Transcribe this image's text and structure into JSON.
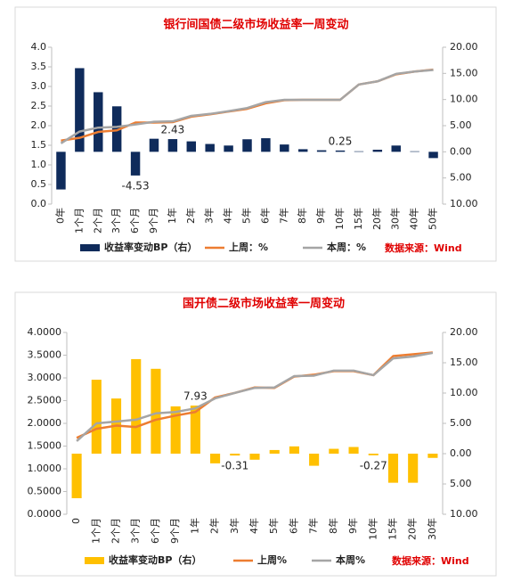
{
  "chart_data": [
    {
      "type": "combo",
      "title": "银行间国债二级市场收益率一周变动",
      "categories": [
        "0年",
        "1个月",
        "2个月",
        "3个月",
        "6个月",
        "9个月",
        "1年",
        "2年",
        "3年",
        "4年",
        "5年",
        "6年",
        "7年",
        "8年",
        "9年",
        "10年",
        "15年",
        "20年",
        "30年",
        "40年",
        "50年"
      ],
      "series": [
        {
          "name": "收益率变动BP（右）",
          "type": "bar",
          "axis": "y2",
          "color": "#0f2b5b",
          "values": [
            -7.2,
            16.0,
            11.4,
            8.7,
            -4.53,
            2.5,
            2.43,
            2.0,
            1.5,
            1.2,
            2.4,
            2.6,
            1.4,
            0.5,
            0.3,
            0.25,
            0.1,
            0.4,
            1.2,
            0.1,
            -1.2
          ],
          "value_labels": [
            null,
            null,
            null,
            null,
            "-4.53",
            null,
            "2.43",
            null,
            null,
            null,
            null,
            null,
            null,
            null,
            null,
            "0.25",
            null,
            null,
            null,
            null,
            null
          ]
        },
        {
          "name": "上周：%",
          "type": "line",
          "color": "#ed7d31",
          "values": [
            1.62,
            1.69,
            1.84,
            1.88,
            2.08,
            2.08,
            2.09,
            2.23,
            2.29,
            2.36,
            2.43,
            2.57,
            2.65,
            2.66,
            2.66,
            2.66,
            3.05,
            3.13,
            3.31,
            3.38,
            3.43
          ]
        },
        {
          "name": "本周：%",
          "type": "line",
          "color": "#a5a5a5",
          "values": [
            1.55,
            1.85,
            1.95,
            1.97,
            2.03,
            2.1,
            2.11,
            2.25,
            2.3,
            2.37,
            2.45,
            2.6,
            2.66,
            2.66,
            2.66,
            2.66,
            3.05,
            3.13,
            3.32,
            3.38,
            3.42
          ]
        }
      ],
      "ylim": [
        0,
        4
      ],
      "yticks": [
        {
          "value": 0,
          "label": "0.0"
        },
        {
          "value": 0.5,
          "label": "0.5"
        },
        {
          "value": 1,
          "label": "1.0"
        },
        {
          "value": 1.5,
          "label": "1.5"
        },
        {
          "value": 2,
          "label": "2.0"
        },
        {
          "value": 2.5,
          "label": "2.5"
        },
        {
          "value": 3,
          "label": "3.0"
        },
        {
          "value": 3.5,
          "label": "3.5"
        },
        {
          "value": 4,
          "label": "4.0"
        }
      ],
      "y2lim": [
        -10,
        20
      ],
      "y2ticks": [
        {
          "value": 20,
          "label": "20.00"
        },
        {
          "value": 15,
          "label": "15.00"
        },
        {
          "value": 10,
          "label": "10.00"
        },
        {
          "value": 5,
          "label": "5.00"
        },
        {
          "value": 0,
          "label": "0.00"
        },
        {
          "value": -5,
          "label": "5.00"
        },
        {
          "value": -10,
          "label": "10.00"
        }
      ],
      "negative_tick_color": "#ff0000",
      "grid": false,
      "legend": "bottom",
      "source": "数据来源：Wind"
    },
    {
      "type": "combo",
      "title": "国开债二级市场收益率一周变动",
      "categories": [
        "0",
        "1个月",
        "2个月",
        "3个月",
        "6个月",
        "9个月",
        "1年",
        "2年",
        "3年",
        "4年",
        "5年",
        "6年",
        "7年",
        "8年",
        "9年",
        "10年",
        "15年",
        "20年",
        "30年"
      ],
      "series": [
        {
          "name": "收益率变动BP（右）",
          "type": "bar",
          "axis": "y2",
          "color": "#ffc000",
          "values": [
            -7.35,
            12.2,
            9.1,
            15.6,
            14.0,
            7.8,
            7.93,
            -1.6,
            -0.31,
            -1.0,
            0.6,
            1.2,
            -2.0,
            0.8,
            1.1,
            -0.27,
            -4.8,
            -4.8,
            -0.7
          ],
          "value_labels": [
            null,
            null,
            null,
            null,
            null,
            null,
            "7.93",
            null,
            "-0.31",
            null,
            null,
            null,
            null,
            null,
            null,
            "-0.27",
            null,
            null,
            null
          ]
        },
        {
          "name": "上周%",
          "type": "line",
          "color": "#ed7d31",
          "values": [
            1.68,
            1.88,
            1.95,
            1.92,
            2.08,
            2.17,
            2.25,
            2.57,
            2.67,
            2.79,
            2.78,
            3.03,
            3.07,
            3.15,
            3.15,
            3.06,
            3.48,
            3.52,
            3.56
          ]
        },
        {
          "name": "本周%",
          "type": "line",
          "color": "#a5a5a5",
          "values": [
            1.61,
            2.0,
            2.04,
            2.08,
            2.22,
            2.25,
            2.33,
            2.55,
            2.67,
            2.78,
            2.79,
            3.04,
            3.05,
            3.16,
            3.16,
            3.06,
            3.43,
            3.47,
            3.55
          ]
        }
      ],
      "ylim": [
        0,
        4
      ],
      "yticks": [
        {
          "value": 0,
          "label": "0.0000"
        },
        {
          "value": 0.5,
          "label": "0.5000"
        },
        {
          "value": 1,
          "label": "1.0000"
        },
        {
          "value": 1.5,
          "label": "1.5000"
        },
        {
          "value": 2,
          "label": "2.0000"
        },
        {
          "value": 2.5,
          "label": "2.5000"
        },
        {
          "value": 3,
          "label": "3.0000"
        },
        {
          "value": 3.5,
          "label": "3.5000"
        },
        {
          "value": 4,
          "label": "4.0000"
        }
      ],
      "y2lim": [
        -10,
        20
      ],
      "y2ticks": [
        {
          "value": 20,
          "label": "20.00"
        },
        {
          "value": 15,
          "label": "15.00"
        },
        {
          "value": 10,
          "label": "10.00"
        },
        {
          "value": 5,
          "label": "5.00"
        },
        {
          "value": 0,
          "label": "0.00"
        },
        {
          "value": -5,
          "label": "5.00"
        },
        {
          "value": -10,
          "label": "10.00"
        }
      ],
      "negative_tick_color": "#ff0000",
      "grid": false,
      "legend": "bottom",
      "source": "数据来源：Wind"
    }
  ]
}
